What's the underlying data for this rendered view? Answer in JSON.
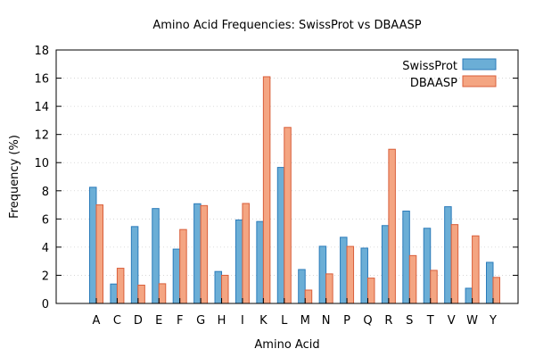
{
  "chart_data": {
    "type": "bar",
    "title": "Amino Acid Frequencies: SwissProt vs DBAASP",
    "xlabel": "Amino Acid",
    "ylabel": "Frequency (%)",
    "ylim": [
      0,
      18
    ],
    "yticks": [
      "0",
      "2",
      "4",
      "6",
      "8",
      "10",
      "12",
      "14",
      "16",
      "18"
    ],
    "grid": true,
    "legend_position": "top-right",
    "categories": [
      "A",
      "C",
      "D",
      "E",
      "F",
      "G",
      "H",
      "I",
      "K",
      "L",
      "M",
      "N",
      "P",
      "Q",
      "R",
      "S",
      "T",
      "V",
      "W",
      "Y"
    ],
    "series": [
      {
        "name": "SwissProt",
        "color": "#6baed6",
        "edge": "#2b7bba",
        "values": [
          8.25,
          1.38,
          5.46,
          6.74,
          3.86,
          7.08,
          2.27,
          5.93,
          5.82,
          9.66,
          2.41,
          4.06,
          4.7,
          3.93,
          5.53,
          6.56,
          5.34,
          6.87,
          1.08,
          2.92
        ]
      },
      {
        "name": "DBAASP",
        "color": "#f4a582",
        "edge": "#d95f3b",
        "values": [
          7.0,
          2.5,
          1.3,
          1.4,
          5.25,
          6.95,
          2.0,
          7.1,
          16.1,
          12.5,
          0.95,
          2.1,
          4.05,
          1.8,
          10.95,
          3.4,
          2.35,
          5.6,
          4.8,
          1.85
        ]
      }
    ]
  }
}
